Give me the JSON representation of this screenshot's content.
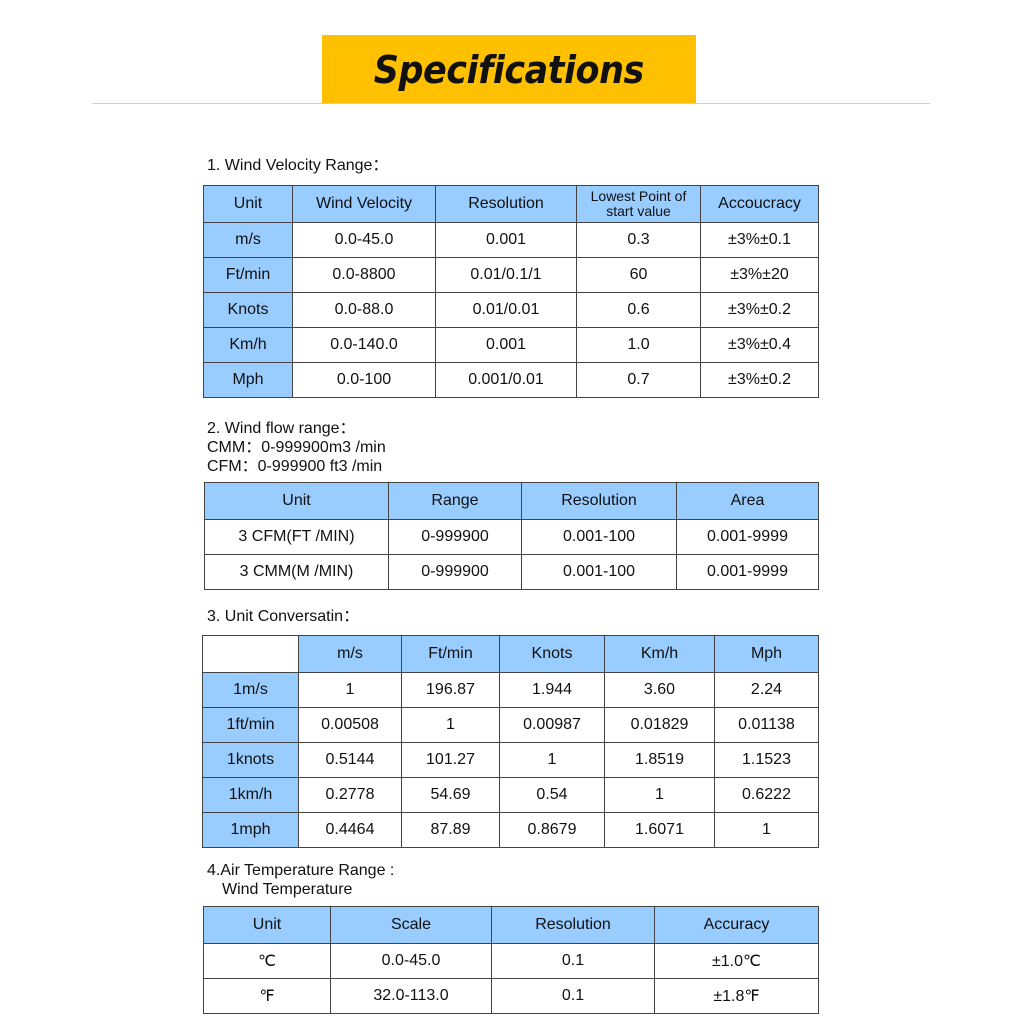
{
  "title": "Specifications",
  "colors": {
    "banner": "#FFC000",
    "header_cell": "#99CCFF"
  },
  "section1": {
    "heading": "1. Wind Velocity Range：",
    "headers": [
      "Unit",
      "Wind Velocity",
      "Resolution",
      "Lowest Point of start value",
      "Accoucracy"
    ],
    "rows": [
      [
        "m/s",
        "0.0-45.0",
        "0.001",
        "0.3",
        "±3%±0.1"
      ],
      [
        "Ft/min",
        "0.0-8800",
        "0.01/0.1/1",
        "60",
        "±3%±20"
      ],
      [
        "Knots",
        "0.0-88.0",
        "0.01/0.01",
        "0.6",
        "±3%±0.2"
      ],
      [
        "Km/h",
        "0.0-140.0",
        "0.001",
        "1.0",
        "±3%±0.4"
      ],
      [
        "Mph",
        "0.0-100",
        "0.001/0.01",
        "0.7",
        "±3%±0.2"
      ]
    ]
  },
  "section2": {
    "heading": "2. Wind flow range：",
    "line_cmm": "CMM：0-999900m3 /min",
    "line_cfm": "CFM：0-999900 ft3 /min",
    "headers": [
      "Unit",
      "Range",
      "Resolution",
      "Area"
    ],
    "rows": [
      [
        "3 CFM(FT /MIN)",
        "0-999900",
        "0.001-100",
        "0.001-9999"
      ],
      [
        "3 CMM(M /MIN)",
        "0-999900",
        "0.001-100",
        "0.001-9999"
      ]
    ]
  },
  "section3": {
    "heading": "3. Unit Conversatin：",
    "headers": [
      "",
      "m/s",
      "Ft/min",
      "Knots",
      "Km/h",
      "Mph"
    ],
    "rows": [
      [
        "1m/s",
        "1",
        "196.87",
        "1.944",
        "3.60",
        "2.24"
      ],
      [
        "1ft/min",
        "0.00508",
        "1",
        "0.00987",
        "0.01829",
        "0.01138"
      ],
      [
        "1knots",
        "0.5144",
        "101.27",
        "1",
        "1.8519",
        "1.1523"
      ],
      [
        "1km/h",
        "0.2778",
        "54.69",
        "0.54",
        "1",
        "0.6222"
      ],
      [
        "1mph",
        "0.4464",
        "87.89",
        "0.8679",
        "1.6071",
        "1"
      ]
    ]
  },
  "section4": {
    "heading": "4.Air Temperature Range :",
    "subheading": "Wind Temperature",
    "headers": [
      "Unit",
      "Scale",
      "Resolution",
      "Accuracy"
    ],
    "rows": [
      [
        "℃",
        "0.0-45.0",
        "0.1",
        "±1.0℃"
      ],
      [
        "℉",
        "32.0-113.0",
        "0.1",
        "±1.8℉"
      ]
    ]
  }
}
